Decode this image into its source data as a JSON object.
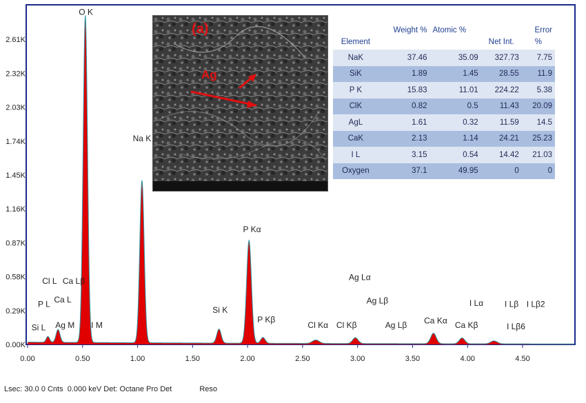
{
  "chart_data": {
    "type": "area",
    "x_ticks": [
      "0.00",
      "0.50",
      "1.00",
      "1.50",
      "2.00",
      "2.50",
      "3.00",
      "3.50",
      "4.00",
      "4.50"
    ],
    "y_ticks": [
      "0.00K",
      "0.29K",
      "0.58K",
      "0.87K",
      "1.16K",
      "1.45K",
      "1.74K",
      "2.03K",
      "2.32K",
      "2.61K"
    ],
    "xlim": [
      0,
      4.97
    ],
    "ylim": [
      0,
      2.9
    ],
    "x_unit": "keV",
    "y_unit": "K counts",
    "peaks": [
      {
        "x": 0.525,
        "y": 2.8,
        "w": 0.02
      },
      {
        "x": 1.04,
        "y": 1.39,
        "w": 0.02
      },
      {
        "x": 2.013,
        "y": 0.88,
        "w": 0.022
      },
      {
        "x": 1.74,
        "y": 0.12,
        "w": 0.02
      },
      {
        "x": 2.14,
        "y": 0.05,
        "w": 0.02
      },
      {
        "x": 0.277,
        "y": 0.11,
        "w": 0.018
      },
      {
        "x": 0.185,
        "y": 0.05,
        "w": 0.015
      },
      {
        "x": 2.62,
        "y": 0.03,
        "w": 0.03
      },
      {
        "x": 2.98,
        "y": 0.05,
        "w": 0.025
      },
      {
        "x": 3.69,
        "y": 0.09,
        "w": 0.025
      },
      {
        "x": 3.95,
        "y": 0.05,
        "w": 0.025
      },
      {
        "x": 4.24,
        "y": 0.025,
        "w": 0.03
      }
    ],
    "background_level": 0.02,
    "peak_labels": [
      {
        "text": "O  K",
        "x": 0.53,
        "y": 2.82
      },
      {
        "text": "Na K",
        "x": 1.04,
        "y": 1.74
      },
      {
        "text": "P  Kα",
        "x": 2.04,
        "y": 0.96
      },
      {
        "text": "Si K",
        "x": 1.75,
        "y": 0.27
      },
      {
        "text": "P  Kβ",
        "x": 2.17,
        "y": 0.19
      },
      {
        "text": "Cl L",
        "x": 0.2,
        "y": 0.52
      },
      {
        "text": "Ca Lβ",
        "x": 0.42,
        "y": 0.52
      },
      {
        "text": "Ca L",
        "x": 0.32,
        "y": 0.36
      },
      {
        "text": "P  L",
        "x": 0.15,
        "y": 0.32
      },
      {
        "text": "Si L",
        "x": 0.1,
        "y": 0.12
      },
      {
        "text": "Ag M",
        "x": 0.34,
        "y": 0.14
      },
      {
        "text": "I  M",
        "x": 0.63,
        "y": 0.14
      },
      {
        "text": "Cl Kα",
        "x": 2.64,
        "y": 0.14
      },
      {
        "text": "Cl Kβ",
        "x": 2.9,
        "y": 0.14
      },
      {
        "text": "Ag Lα",
        "x": 3.02,
        "y": 0.55
      },
      {
        "text": "Ag Lβ",
        "x": 3.18,
        "y": 0.35
      },
      {
        "text": "Ag Lβ",
        "x": 3.35,
        "y": 0.14
      },
      {
        "text": "Ca Kα",
        "x": 3.71,
        "y": 0.18
      },
      {
        "text": "Ca Kβ",
        "x": 3.99,
        "y": 0.14
      },
      {
        "text": "I  Lα",
        "x": 4.08,
        "y": 0.33
      },
      {
        "text": "I  Lβ",
        "x": 4.4,
        "y": 0.32
      },
      {
        "text": "I  Lβ2",
        "x": 4.62,
        "y": 0.32
      },
      {
        "text": "I  Lβ6",
        "x": 4.44,
        "y": 0.13
      }
    ]
  },
  "footer": {
    "lsec": "Lsec: 30.0 0 Cnts  0.000 keV Det: Octane Pro Det",
    "reso": "Reso"
  },
  "image": {
    "label": "(a)",
    "arrow_label": "Ag"
  },
  "table": {
    "header": {
      "weight": "Weight %",
      "atomic": "Atomic %",
      "error": "Error",
      "element": "Element",
      "netint": "Net Int.",
      "error_unit": "%"
    },
    "rows": [
      {
        "element": "NaK",
        "weight": "37.46",
        "atomic": "35.09",
        "netint": "327.73",
        "error": "7.75"
      },
      {
        "element": "SiK",
        "weight": "1.89",
        "atomic": "1.45",
        "netint": "28.55",
        "error": "11.9"
      },
      {
        "element": "P K",
        "weight": "15.83",
        "atomic": "11.01",
        "netint": "224.22",
        "error": "5.38"
      },
      {
        "element": "ClK",
        "weight": "0.82",
        "atomic": "0.5",
        "netint": "11.43",
        "error": "20.09"
      },
      {
        "element": "AgL",
        "weight": "1.61",
        "atomic": "0.32",
        "netint": "11.59",
        "error": "14.5"
      },
      {
        "element": "CaK",
        "weight": "2.13",
        "atomic": "1.14",
        "netint": "24.21",
        "error": "25.23"
      },
      {
        "element": "I L",
        "weight": "3.15",
        "atomic": "0.54",
        "netint": "14.42",
        "error": "21.03"
      },
      {
        "element": "Oxygen",
        "weight": "37.1",
        "atomic": "49.95",
        "netint": "0",
        "error": "0"
      }
    ]
  },
  "colors": {
    "fill": "#e00000",
    "outline": "#2b9aa8",
    "frame": "#1a2a8a",
    "row_odd": "#dfe6f3",
    "row_even": "#a9bddf"
  }
}
